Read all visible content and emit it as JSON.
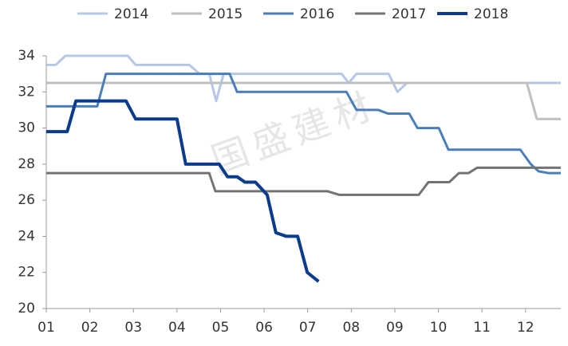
{
  "chart_data": {
    "type": "line",
    "watermark": "国盛建材",
    "xlim": [
      1,
      12.81
    ],
    "xticks": [
      {
        "value": 1,
        "label": "01"
      },
      {
        "value": 2,
        "label": "02"
      },
      {
        "value": 3,
        "label": "03"
      },
      {
        "value": 4,
        "label": "04"
      },
      {
        "value": 5,
        "label": "05"
      },
      {
        "value": 6,
        "label": "06"
      },
      {
        "value": 7,
        "label": "07"
      },
      {
        "value": 8,
        "label": "08"
      },
      {
        "value": 9,
        "label": "09"
      },
      {
        "value": 10,
        "label": "10"
      },
      {
        "value": 11,
        "label": "11"
      },
      {
        "value": 12,
        "label": "12"
      }
    ],
    "ylim": [
      20,
      34
    ],
    "yticks": [
      20,
      22,
      24,
      26,
      28,
      30,
      32,
      34
    ],
    "legend": "top",
    "series": [
      {
        "name": "2014",
        "color": "#b4c7e7",
        "line_width": 3,
        "x": [
          1,
          1.22,
          1.44,
          2.87,
          3.05,
          4.28,
          4.52,
          4.74,
          4.9,
          5.07,
          7.78,
          7.94,
          8.12,
          8.86,
          9.06,
          9.28,
          12.81
        ],
        "values": [
          33.5,
          33.5,
          34,
          34,
          33.5,
          33.5,
          33,
          33,
          31.5,
          33,
          33,
          32.5,
          33,
          33,
          32,
          32.5,
          32.5
        ]
      },
      {
        "name": "2015",
        "color": "#bfbfbf",
        "line_width": 3,
        "x": [
          1,
          12.03,
          12.26,
          12.81
        ],
        "values": [
          32.5,
          32.5,
          30.5,
          30.5
        ]
      },
      {
        "name": "2016",
        "color": "#4a7ebb",
        "line_width": 3,
        "x": [
          1,
          2.17,
          2.37,
          5.21,
          5.38,
          7.89,
          8.12,
          8.62,
          8.84,
          9.33,
          9.52,
          10.01,
          10.23,
          11.88,
          12.12,
          12.3,
          12.54,
          12.81
        ],
        "values": [
          31.2,
          31.2,
          33,
          33,
          32,
          32,
          31,
          31,
          30.8,
          30.8,
          30,
          30,
          28.8,
          28.8,
          28,
          27.6,
          27.5,
          27.5
        ]
      },
      {
        "name": "2017",
        "color": "#737373",
        "line_width": 3,
        "x": [
          1,
          4.74,
          4.88,
          7.45,
          7.72,
          9.55,
          9.77,
          10.25,
          10.47,
          10.69,
          10.89,
          12.81
        ],
        "values": [
          27.5,
          27.5,
          26.5,
          26.5,
          26.3,
          26.3,
          27,
          27,
          27.5,
          27.5,
          27.8,
          27.8
        ]
      },
      {
        "name": "2018",
        "color": "#0b3b8c",
        "line_width": 4,
        "x": [
          1,
          1.48,
          1.68,
          2.83,
          3.05,
          4,
          4.2,
          4.97,
          5.16,
          5.38,
          5.56,
          5.8,
          6.07,
          6.27,
          6.51,
          6.77,
          6.99,
          7.25
        ],
        "values": [
          29.8,
          29.8,
          31.5,
          31.5,
          30.5,
          30.5,
          28,
          28,
          27.3,
          27.3,
          27,
          27,
          26.3,
          24.2,
          24,
          24,
          22,
          21.5
        ]
      }
    ]
  }
}
